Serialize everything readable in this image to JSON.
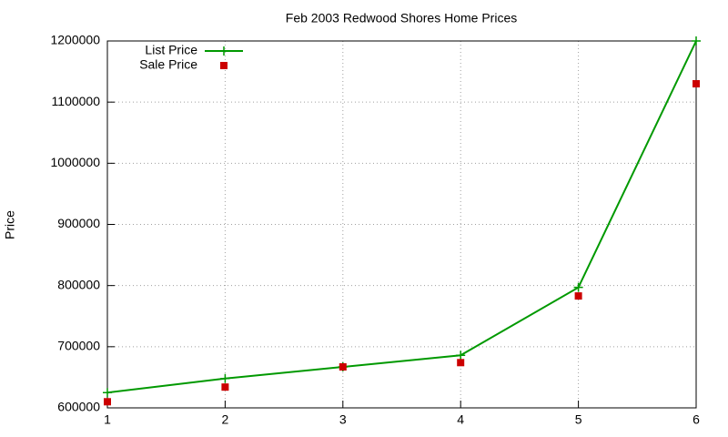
{
  "chart_data": {
    "type": "line",
    "title": "Feb 2003 Redwood Shores Home Prices",
    "y_label": "Price",
    "x": [
      1,
      2,
      3,
      4,
      5,
      6
    ],
    "series": [
      {
        "name": "List Price",
        "color": "#009900",
        "style": "line-plus",
        "values": [
          625000,
          648000,
          667000,
          686000,
          797000,
          1200000
        ]
      },
      {
        "name": "Sale Price",
        "color": "#cc0000",
        "style": "square",
        "values": [
          610000,
          634000,
          667000,
          674000,
          783000,
          1130000
        ]
      }
    ],
    "xlim": [
      1,
      6
    ],
    "xticks": [
      1,
      2,
      3,
      4,
      5,
      6
    ],
    "ylim": [
      600000,
      1200000
    ],
    "yticks": [
      600000,
      700000,
      800000,
      900000,
      1000000,
      1100000,
      1200000
    ],
    "grid": true,
    "legend": "top-left"
  }
}
